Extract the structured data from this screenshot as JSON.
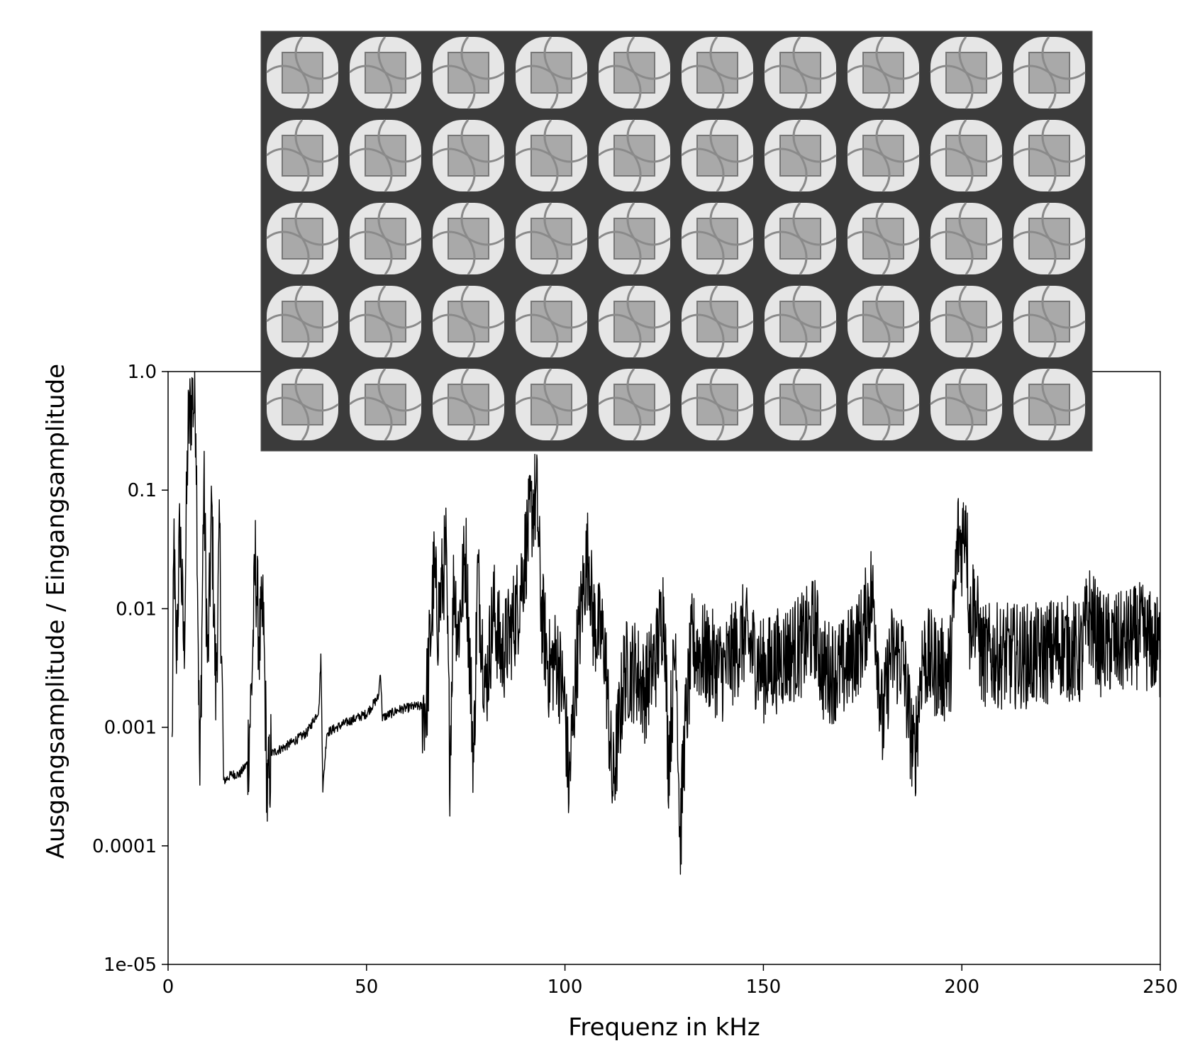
{
  "chart_data": {
    "type": "line",
    "title": "",
    "xlabel": "Frequenz in kHz",
    "ylabel": "Ausgangsamplitude / Eingangsamplitude",
    "xlim": [
      0,
      250
    ],
    "ylim": [
      1e-05,
      1.0
    ],
    "y_scale": "log",
    "grid": false,
    "legend": "none",
    "x_ticks": [
      0,
      50,
      100,
      150,
      200,
      250
    ],
    "x_tick_labels": [
      "0",
      "50",
      "100",
      "150",
      "200",
      "250"
    ],
    "y_ticks": [
      1.0,
      0.1,
      0.01,
      0.001,
      0.0001,
      1e-05
    ],
    "y_tick_labels": [
      "1.0",
      "0.1",
      "0.01",
      "0.001",
      "0.0001",
      "1e-05"
    ],
    "line_color": "#000000",
    "inset_image": "photo of lattice metamaterial specimen (grayscale cellular structure with square nodes)",
    "series": [
      {
        "name": "",
        "envelope_points": [
          [
            1,
            0.0006
          ],
          [
            1.5,
            0.04
          ],
          [
            2,
            0.003
          ],
          [
            3,
            0.05
          ],
          [
            4,
            0.004
          ],
          [
            5,
            0.3
          ],
          [
            6,
            0.6
          ],
          [
            7,
            0.5
          ],
          [
            8,
            0.0003
          ],
          [
            9,
            0.12
          ],
          [
            10,
            0.003
          ],
          [
            11,
            0.07
          ],
          [
            12,
            0.002
          ],
          [
            13,
            0.04
          ],
          [
            14,
            0.00035
          ],
          [
            16,
            0.0004
          ],
          [
            18,
            0.0004
          ],
          [
            20,
            0.0005
          ],
          [
            21,
            0.002
          ],
          [
            22,
            0.025
          ],
          [
            23,
            0.005
          ],
          [
            24,
            0.009
          ],
          [
            25,
            0.00025
          ],
          [
            26,
            0.0006
          ],
          [
            30,
            0.0007
          ],
          [
            35,
            0.0009
          ],
          [
            38,
            0.0014
          ],
          [
            38.5,
            0.004
          ],
          [
            39,
            0.0003
          ],
          [
            40,
            0.0009
          ],
          [
            45,
            0.0011
          ],
          [
            50,
            0.0013
          ],
          [
            53,
            0.0018
          ],
          [
            53.5,
            0.003
          ],
          [
            54,
            0.0012
          ],
          [
            58,
            0.0014
          ],
          [
            62,
            0.0015
          ],
          [
            65,
            0.0015
          ],
          [
            66,
            0.005
          ],
          [
            67,
            0.02
          ],
          [
            68,
            0.008
          ],
          [
            70,
            0.03
          ],
          [
            71,
            0.0005
          ],
          [
            72,
            0.02
          ],
          [
            73,
            0.006
          ],
          [
            75,
            0.03
          ],
          [
            77,
            0.0005
          ],
          [
            78,
            0.02
          ],
          [
            80,
            0.002
          ],
          [
            82,
            0.01
          ],
          [
            84,
            0.004
          ],
          [
            86,
            0.006
          ],
          [
            88,
            0.01
          ],
          [
            90,
            0.03
          ],
          [
            92,
            0.08
          ],
          [
            93,
            0.08
          ],
          [
            94,
            0.01
          ],
          [
            96,
            0.003
          ],
          [
            98,
            0.004
          ],
          [
            100,
            0.0015
          ],
          [
            101,
            0.0003
          ],
          [
            103,
            0.004
          ],
          [
            105,
            0.02
          ],
          [
            106,
            0.03
          ],
          [
            107,
            0.008
          ],
          [
            110,
            0.005
          ],
          [
            112,
            0.0003
          ],
          [
            115,
            0.003
          ],
          [
            118,
            0.003
          ],
          [
            120,
            0.002
          ],
          [
            123,
            0.004
          ],
          [
            125,
            0.012
          ],
          [
            126,
            0.0005
          ],
          [
            128,
            0.006
          ],
          [
            129,
            0.0001
          ],
          [
            130,
            0.0007
          ],
          [
            132,
            0.005
          ],
          [
            135,
            0.004
          ],
          [
            140,
            0.003
          ],
          [
            145,
            0.006
          ],
          [
            150,
            0.003
          ],
          [
            155,
            0.004
          ],
          [
            160,
            0.005
          ],
          [
            163,
            0.007
          ],
          [
            165,
            0.003
          ],
          [
            170,
            0.003
          ],
          [
            175,
            0.006
          ],
          [
            177,
            0.014
          ],
          [
            178,
            0.01
          ],
          [
            180,
            0.001
          ],
          [
            182,
            0.004
          ],
          [
            185,
            0.004
          ],
          [
            188,
            0.0005
          ],
          [
            190,
            0.004
          ],
          [
            195,
            0.003
          ],
          [
            197,
            0.003
          ],
          [
            198,
            0.01
          ],
          [
            199,
            0.04
          ],
          [
            200,
            0.035
          ],
          [
            201,
            0.07
          ],
          [
            202,
            0.007
          ],
          [
            203,
            0.012
          ],
          [
            205,
            0.004
          ],
          [
            210,
            0.004
          ],
          [
            215,
            0.004
          ],
          [
            220,
            0.004
          ],
          [
            225,
            0.005
          ],
          [
            230,
            0.004
          ],
          [
            232,
            0.009
          ],
          [
            235,
            0.005
          ],
          [
            240,
            0.005
          ],
          [
            245,
            0.006
          ],
          [
            248,
            0.005
          ],
          [
            250,
            0.0045
          ]
        ]
      }
    ]
  }
}
